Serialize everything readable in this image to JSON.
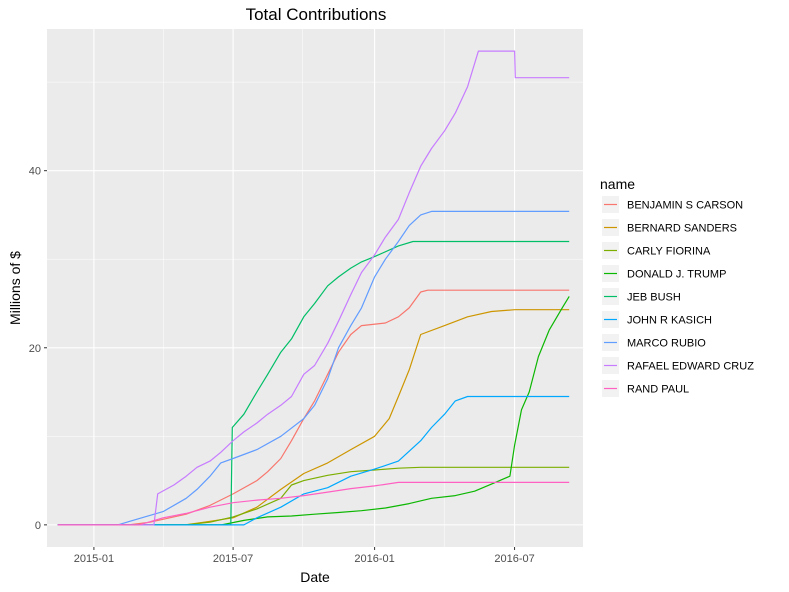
{
  "chart_data": {
    "type": "line",
    "title": "Total Contributions",
    "xlabel": "Date",
    "ylabel": "Millions of $",
    "x_ticks": [
      "2015-01",
      "2015-07",
      "2016-01",
      "2016-07"
    ],
    "y_ticks": [
      0,
      20,
      40
    ],
    "xlim": [
      "2014-11-01",
      "2016-09-28"
    ],
    "ylim": [
      -2.5,
      56
    ],
    "grid": true,
    "legend_title": "name",
    "legend_position": "right",
    "series": [
      {
        "name": "BENJAMIN S CARSON",
        "color": "#F8766D",
        "points": [
          [
            "2014-11-15",
            0
          ],
          [
            "2015-02-15",
            0
          ],
          [
            "2015-03-15",
            0.3
          ],
          [
            "2015-05-01",
            1.2
          ],
          [
            "2015-06-01",
            2.2
          ],
          [
            "2015-07-01",
            3.5
          ],
          [
            "2015-08-01",
            5.0
          ],
          [
            "2015-08-15",
            6.0
          ],
          [
            "2015-09-01",
            7.5
          ],
          [
            "2015-09-15",
            9.5
          ],
          [
            "2015-10-01",
            12.0
          ],
          [
            "2015-10-15",
            14.0
          ],
          [
            "2015-11-01",
            17.0
          ],
          [
            "2015-11-15",
            19.5
          ],
          [
            "2015-12-01",
            21.5
          ],
          [
            "2015-12-15",
            22.5
          ],
          [
            "2016-01-15",
            22.8
          ],
          [
            "2016-02-01",
            23.5
          ],
          [
            "2016-02-15",
            24.5
          ],
          [
            "2016-03-01",
            26.3
          ],
          [
            "2016-03-10",
            26.5
          ],
          [
            "2016-09-10",
            26.5
          ]
        ]
      },
      {
        "name": "BERNARD SANDERS",
        "color": "#CD9600",
        "points": [
          [
            "2014-11-15",
            0
          ],
          [
            "2015-04-30",
            0
          ],
          [
            "2015-06-01",
            0.4
          ],
          [
            "2015-07-01",
            0.8
          ],
          [
            "2015-08-01",
            2.0
          ],
          [
            "2015-09-01",
            4.0
          ],
          [
            "2015-10-01",
            5.8
          ],
          [
            "2015-11-01",
            7.0
          ],
          [
            "2015-12-01",
            8.5
          ],
          [
            "2016-01-01",
            10.0
          ],
          [
            "2016-01-20",
            12.0
          ],
          [
            "2016-02-01",
            14.5
          ],
          [
            "2016-02-15",
            17.5
          ],
          [
            "2016-03-01",
            21.5
          ],
          [
            "2016-04-01",
            22.5
          ],
          [
            "2016-05-01",
            23.5
          ],
          [
            "2016-06-01",
            24.1
          ],
          [
            "2016-07-01",
            24.3
          ],
          [
            "2016-09-10",
            24.3
          ]
        ]
      },
      {
        "name": "CARLY FIORINA",
        "color": "#7CAE00",
        "points": [
          [
            "2014-11-15",
            0
          ],
          [
            "2015-04-30",
            0
          ],
          [
            "2015-06-01",
            0.3
          ],
          [
            "2015-07-01",
            0.9
          ],
          [
            "2015-08-01",
            1.8
          ],
          [
            "2015-09-01",
            3.0
          ],
          [
            "2015-09-15",
            4.5
          ],
          [
            "2015-10-01",
            5.0
          ],
          [
            "2015-11-01",
            5.6
          ],
          [
            "2015-12-01",
            6.0
          ],
          [
            "2016-01-01",
            6.2
          ],
          [
            "2016-02-01",
            6.4
          ],
          [
            "2016-03-01",
            6.5
          ],
          [
            "2016-09-10",
            6.5
          ]
        ]
      },
      {
        "name": "DONALD J. TRUMP",
        "color": "#0CB702",
        "points": [
          [
            "2014-11-15",
            0
          ],
          [
            "2015-06-16",
            0
          ],
          [
            "2015-07-15",
            0.5
          ],
          [
            "2015-08-15",
            0.9
          ],
          [
            "2015-09-15",
            1.0
          ],
          [
            "2015-10-15",
            1.2
          ],
          [
            "2015-11-15",
            1.4
          ],
          [
            "2015-12-15",
            1.6
          ],
          [
            "2016-01-15",
            1.9
          ],
          [
            "2016-02-15",
            2.4
          ],
          [
            "2016-03-15",
            3.0
          ],
          [
            "2016-04-15",
            3.3
          ],
          [
            "2016-05-10",
            3.8
          ],
          [
            "2016-06-01",
            4.6
          ],
          [
            "2016-06-25",
            5.5
          ],
          [
            "2016-07-01",
            9.0
          ],
          [
            "2016-07-10",
            13.0
          ],
          [
            "2016-07-20",
            15.0
          ],
          [
            "2016-08-01",
            19.0
          ],
          [
            "2016-08-15",
            22.0
          ],
          [
            "2016-09-01",
            24.5
          ],
          [
            "2016-09-10",
            25.8
          ]
        ]
      },
      {
        "name": "JEB BUSH",
        "color": "#00BE67",
        "points": [
          [
            "2014-11-15",
            0
          ],
          [
            "2015-06-28",
            0
          ],
          [
            "2015-06-30",
            11.0
          ],
          [
            "2015-07-15",
            12.5
          ],
          [
            "2015-08-01",
            15.0
          ],
          [
            "2015-08-15",
            17.0
          ],
          [
            "2015-09-01",
            19.5
          ],
          [
            "2015-09-15",
            21.0
          ],
          [
            "2015-10-01",
            23.5
          ],
          [
            "2015-10-15",
            25.0
          ],
          [
            "2015-11-01",
            27.0
          ],
          [
            "2015-11-15",
            28.0
          ],
          [
            "2015-12-01",
            29.0
          ],
          [
            "2015-12-15",
            29.7
          ],
          [
            "2016-01-01",
            30.3
          ],
          [
            "2016-02-01",
            31.5
          ],
          [
            "2016-02-20",
            32.0
          ],
          [
            "2016-09-10",
            32.0
          ]
        ]
      },
      {
        "name": "JOHN R KASICH",
        "color": "#00A9FF",
        "points": [
          [
            "2014-11-15",
            0
          ],
          [
            "2015-07-15",
            0
          ],
          [
            "2015-08-01",
            0.8
          ],
          [
            "2015-09-01",
            2.0
          ],
          [
            "2015-10-01",
            3.5
          ],
          [
            "2015-11-01",
            4.2
          ],
          [
            "2015-12-01",
            5.5
          ],
          [
            "2016-01-01",
            6.3
          ],
          [
            "2016-02-01",
            7.2
          ],
          [
            "2016-03-01",
            9.5
          ],
          [
            "2016-03-15",
            11.0
          ],
          [
            "2016-04-01",
            12.5
          ],
          [
            "2016-04-15",
            14.0
          ],
          [
            "2016-05-01",
            14.5
          ],
          [
            "2016-09-10",
            14.5
          ]
        ]
      },
      {
        "name": "MARCO RUBIO",
        "color": "#619CFF",
        "points": [
          [
            "2014-11-15",
            0
          ],
          [
            "2015-02-01",
            0
          ],
          [
            "2015-04-01",
            1.5
          ],
          [
            "2015-05-01",
            3.0
          ],
          [
            "2015-05-15",
            4.0
          ],
          [
            "2015-06-01",
            5.5
          ],
          [
            "2015-06-15",
            7.0
          ],
          [
            "2015-07-01",
            7.5
          ],
          [
            "2015-08-01",
            8.5
          ],
          [
            "2015-09-01",
            10.0
          ],
          [
            "2015-10-01",
            12.0
          ],
          [
            "2015-10-15",
            13.5
          ],
          [
            "2015-11-01",
            16.5
          ],
          [
            "2015-11-15",
            20.0
          ],
          [
            "2015-12-01",
            22.5
          ],
          [
            "2015-12-15",
            24.5
          ],
          [
            "2016-01-01",
            28.0
          ],
          [
            "2016-01-15",
            30.0
          ],
          [
            "2016-02-01",
            32.0
          ],
          [
            "2016-02-15",
            33.8
          ],
          [
            "2016-03-01",
            35.0
          ],
          [
            "2016-03-15",
            35.4
          ],
          [
            "2016-09-10",
            35.4
          ]
        ]
      },
      {
        "name": "RAFAEL EDWARD CRUZ",
        "color": "#C77CFF",
        "points": [
          [
            "2014-11-15",
            0
          ],
          [
            "2015-03-20",
            0
          ],
          [
            "2015-03-25",
            3.5
          ],
          [
            "2015-04-15",
            4.5
          ],
          [
            "2015-05-01",
            5.5
          ],
          [
            "2015-05-15",
            6.5
          ],
          [
            "2015-06-01",
            7.2
          ],
          [
            "2015-06-15",
            8.2
          ],
          [
            "2015-07-01",
            9.5
          ],
          [
            "2015-07-15",
            10.5
          ],
          [
            "2015-08-01",
            11.5
          ],
          [
            "2015-08-15",
            12.5
          ],
          [
            "2015-09-01",
            13.5
          ],
          [
            "2015-09-15",
            14.5
          ],
          [
            "2015-10-01",
            17.0
          ],
          [
            "2015-10-15",
            18.0
          ],
          [
            "2015-11-01",
            20.5
          ],
          [
            "2015-11-15",
            23.0
          ],
          [
            "2015-12-01",
            26.0
          ],
          [
            "2015-12-15",
            28.5
          ],
          [
            "2016-01-01",
            30.5
          ],
          [
            "2016-01-15",
            32.5
          ],
          [
            "2016-02-01",
            34.5
          ],
          [
            "2016-02-15",
            37.5
          ],
          [
            "2016-03-01",
            40.5
          ],
          [
            "2016-03-15",
            42.5
          ],
          [
            "2016-04-01",
            44.5
          ],
          [
            "2016-04-15",
            46.5
          ],
          [
            "2016-05-01",
            49.5
          ],
          [
            "2016-05-15",
            53.5
          ],
          [
            "2016-07-01",
            53.5
          ],
          [
            "2016-07-02",
            50.5
          ],
          [
            "2016-09-10",
            50.5
          ]
        ]
      },
      {
        "name": "RAND PAUL",
        "color": "#FF61C3",
        "points": [
          [
            "2014-11-15",
            0
          ],
          [
            "2015-03-01",
            0
          ],
          [
            "2015-04-01",
            0.8
          ],
          [
            "2015-05-01",
            1.3
          ],
          [
            "2015-06-01",
            2.0
          ],
          [
            "2015-07-01",
            2.5
          ],
          [
            "2015-08-01",
            2.8
          ],
          [
            "2015-09-01",
            3.0
          ],
          [
            "2015-10-01",
            3.3
          ],
          [
            "2015-11-01",
            3.7
          ],
          [
            "2015-12-01",
            4.1
          ],
          [
            "2016-01-01",
            4.4
          ],
          [
            "2016-02-01",
            4.8
          ],
          [
            "2016-09-10",
            4.8
          ]
        ]
      }
    ]
  }
}
